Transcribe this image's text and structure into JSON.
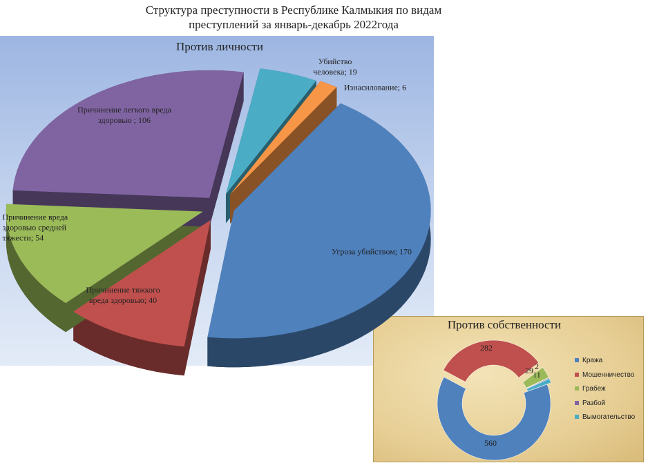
{
  "title": "Структура преступности  в Республике Калмыкия по видам преступлений за январь-декабрь 2022года",
  "chart_data": [
    {
      "type": "pie",
      "title": "Против личности",
      "categories": [
        "Убийство человека;",
        "Изнасилование;",
        "Угроза убийством;",
        "Причинение тяжкого вреда здоровью;",
        "Причинение вреда здоровью средней тяжести;",
        "Причинение легкого вреда здоровью ;"
      ],
      "values": [
        19,
        6,
        170,
        40,
        54,
        106
      ],
      "colors": [
        "#4bacc6",
        "#f79646",
        "#4f81bd",
        "#c0504d",
        "#9bbb59",
        "#8064a2"
      ]
    },
    {
      "type": "doughnut",
      "title": "Против собственности",
      "categories": [
        "Кража",
        "Мошенничество",
        "Грабеж",
        "Разбой",
        "Вымогательство"
      ],
      "values": [
        560,
        282,
        29,
        2,
        11
      ],
      "colors": [
        "#4f81bd",
        "#c0504d",
        "#9bbb59",
        "#8064a2",
        "#4bacc6"
      ]
    }
  ]
}
